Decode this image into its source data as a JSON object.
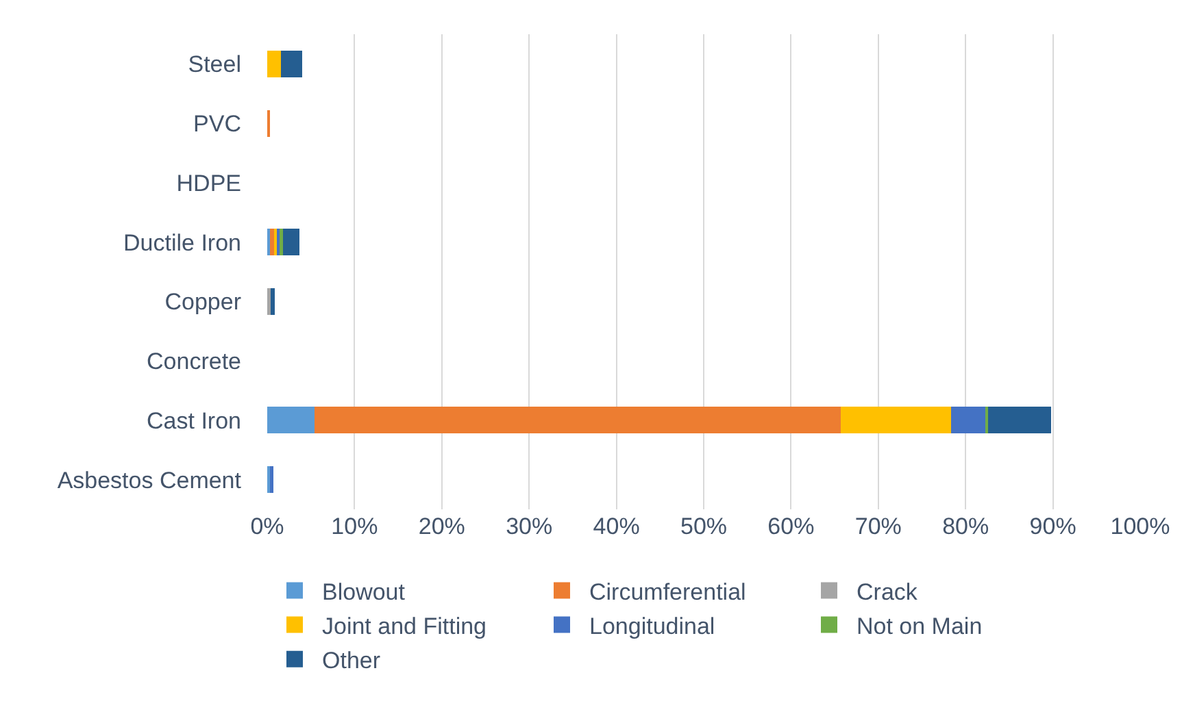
{
  "chart_data": {
    "type": "bar",
    "orientation": "horizontal",
    "stacked": true,
    "categories": [
      "Steel",
      "PVC",
      "HDPE",
      "Ductile Iron",
      "Copper",
      "Concrete",
      "Cast Iron",
      "Asbestos Cement"
    ],
    "series": [
      {
        "name": "Blowout",
        "color": "#5b9bd5",
        "values": [
          0,
          0,
          0,
          0.3,
          0,
          0,
          5.4,
          0.4
        ]
      },
      {
        "name": "Circumferential",
        "color": "#ed7d31",
        "values": [
          0,
          0.3,
          0,
          0.5,
          0,
          0,
          60.3,
          0
        ]
      },
      {
        "name": "Crack",
        "color": "#a5a5a5",
        "values": [
          0,
          0,
          0,
          0,
          0.4,
          0,
          0,
          0
        ]
      },
      {
        "name": "Joint and Fitting",
        "color": "#ffc000",
        "values": [
          1.6,
          0,
          0,
          0.4,
          0,
          0,
          12.6,
          0
        ]
      },
      {
        "name": "Longitudinal",
        "color": "#4472c4",
        "values": [
          0,
          0,
          0,
          0.3,
          0,
          0,
          4.0,
          0.3
        ]
      },
      {
        "name": "Not on Main",
        "color": "#70ad47",
        "values": [
          0,
          0,
          0,
          0.3,
          0,
          0,
          0.3,
          0
        ]
      },
      {
        "name": "Other",
        "color": "#255e91",
        "values": [
          2.4,
          0,
          0,
          1.9,
          0.5,
          0,
          7.2,
          0
        ]
      }
    ],
    "xlim": [
      0,
      100
    ],
    "xticks": [
      {
        "value": 0,
        "label": "0%"
      },
      {
        "value": 10,
        "label": "10%"
      },
      {
        "value": 20,
        "label": "20%"
      },
      {
        "value": 30,
        "label": "30%"
      },
      {
        "value": 40,
        "label": "40%"
      },
      {
        "value": 50,
        "label": "50%"
      },
      {
        "value": 60,
        "label": "60%"
      },
      {
        "value": 70,
        "label": "70%"
      },
      {
        "value": 80,
        "label": "80%"
      },
      {
        "value": 90,
        "label": "90%"
      },
      {
        "value": 100,
        "label": "100%"
      }
    ],
    "grid": "x",
    "legend": "bottom"
  }
}
